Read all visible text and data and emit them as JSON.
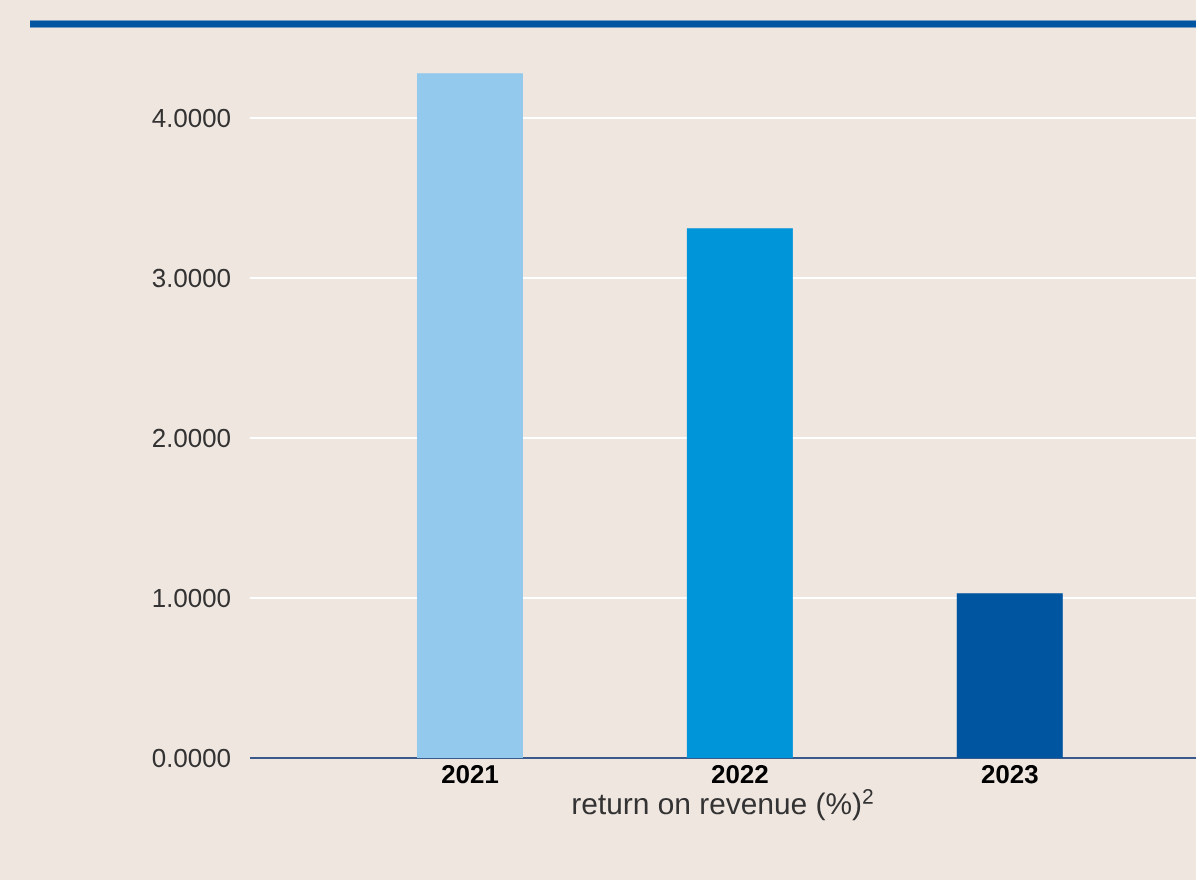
{
  "chart_data": {
    "type": "bar",
    "xlabel": "return on revenue (%)$^{2}$",
    "categories": [
      "2021",
      "2022",
      "2023"
    ],
    "values": [
      4.28,
      3.31,
      1.03
    ],
    "colors": [
      "#93c9ec",
      "#0095d9",
      "#0055a0"
    ],
    "ylim": [
      0,
      4.28
    ],
    "yticks": [
      {
        "value": 0,
        "label": "0.0000"
      },
      {
        "value": 1,
        "label": "1.0000"
      },
      {
        "value": 2,
        "label": "2.0000"
      },
      {
        "value": 3,
        "label": "3.0000"
      },
      {
        "value": 4,
        "label": "4.0000"
      }
    ],
    "grid": "y"
  }
}
